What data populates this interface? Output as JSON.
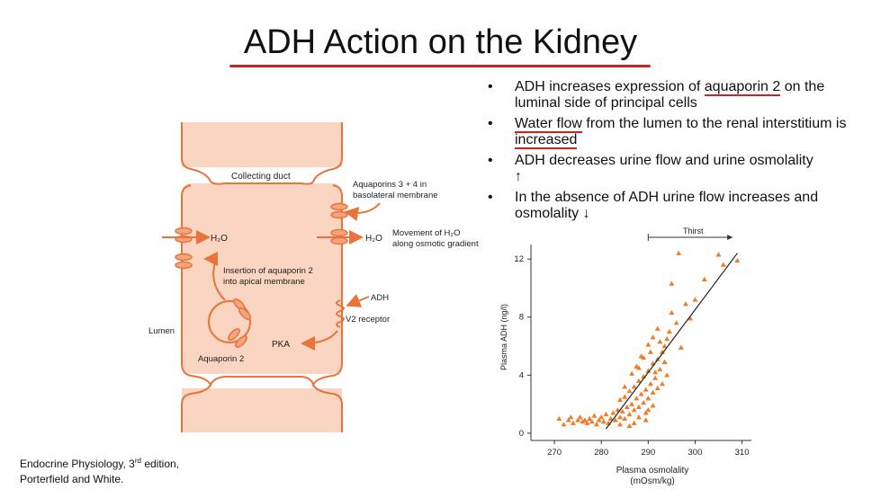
{
  "title": "ADH Action on the Kidney",
  "bullets": [
    {
      "pre": "ADH increases expression of ",
      "mark": "aquaporin 2",
      "post": " on the luminal side of principal cells"
    },
    {
      "pre": "",
      "mark": "Water flow",
      "mid": " from the lumen to the renal interstitium is ",
      "mark2": "increased",
      "post": "",
      "arrow": ""
    },
    {
      "pre": "ADH decreases urine flow and urine osmolality ",
      "arrow": "↑"
    },
    {
      "pre": "In the absence of ADH urine flow increases and osmolality ",
      "arrow": "↓"
    }
  ],
  "caption": {
    "line1_pre": "Endocrine Physiology, 3",
    "line1_sup": "rd",
    "line1_post": " edition,",
    "line2": "Porterfield and White."
  },
  "diagram": {
    "collecting_duct": "Collecting duct",
    "aquaporins_34": "Aquaporins 3 + 4 in",
    "basolateral": "basolateral membrane",
    "h2o_left": "H₂O",
    "h2o_right": "H₂O",
    "movement_1": "Movement of H₂O",
    "movement_2": "along osmotic gradient",
    "insertion_1": "Insertion of aquaporin 2",
    "insertion_2": "into apical membrane",
    "adh": "ADH",
    "v2": "V2 receptor",
    "lumen": "Lumen",
    "pka": "PKA",
    "aquaporin2": "Aquaporin 2",
    "cell_color": "#f9d5c2",
    "membrane_color": "#e8743b"
  },
  "chart_data": {
    "type": "scatter",
    "xlabel": "Plasma osmolality",
    "xlabel2": "(mOsm/kg)",
    "ylabel": "Plasma ADH (ng/l)",
    "xlim": [
      265,
      312
    ],
    "ylim": [
      -0.5,
      13
    ],
    "xticks": [
      270,
      280,
      290,
      300,
      310
    ],
    "yticks": [
      0,
      4,
      8,
      12
    ],
    "annotation": "Thirst",
    "marker_color": "#f07c2a",
    "points": [
      [
        271,
        1
      ],
      [
        272,
        0.6
      ],
      [
        273,
        0.9
      ],
      [
        273.5,
        1.1
      ],
      [
        274,
        0.7
      ],
      [
        275,
        0.9
      ],
      [
        275.5,
        1.1
      ],
      [
        276,
        0.8
      ],
      [
        276.5,
        0.9
      ],
      [
        277,
        0.7
      ],
      [
        277.5,
        1.0
      ],
      [
        278,
        0.8
      ],
      [
        278.5,
        1.2
      ],
      [
        279,
        0.6
      ],
      [
        279.5,
        0.9
      ],
      [
        280,
        1.1
      ],
      [
        280.5,
        0.8
      ],
      [
        281,
        1.3
      ],
      [
        281.5,
        0.7
      ],
      [
        282,
        1.0
      ],
      [
        282.5,
        1.4
      ],
      [
        283,
        0.9
      ],
      [
        283.5,
        1.6
      ],
      [
        284,
        1.1
      ],
      [
        284,
        2.3
      ],
      [
        284.5,
        1.5
      ],
      [
        285,
        2.5
      ],
      [
        285,
        1.0
      ],
      [
        285.5,
        1.8
      ],
      [
        286,
        2.9
      ],
      [
        286,
        1.3
      ],
      [
        286.5,
        2.0
      ],
      [
        287,
        3.2
      ],
      [
        287,
        1.6
      ],
      [
        287.5,
        2.4
      ],
      [
        288,
        3.6
      ],
      [
        288,
        1.8
      ],
      [
        288,
        4.5
      ],
      [
        288.5,
        2.7
      ],
      [
        289,
        3.9
      ],
      [
        289,
        2.1
      ],
      [
        289,
        5.2
      ],
      [
        289.5,
        3.0
      ],
      [
        290,
        4.3
      ],
      [
        290,
        2.4
      ],
      [
        290,
        6.1
      ],
      [
        290.5,
        3.4
      ],
      [
        291,
        4.8
      ],
      [
        291,
        2.8
      ],
      [
        291,
        6.6
      ],
      [
        291.5,
        3.8
      ],
      [
        292,
        5.1
      ],
      [
        292,
        3.1
      ],
      [
        292,
        7.2
      ],
      [
        292.5,
        4.4
      ],
      [
        293,
        5.6
      ],
      [
        293,
        3.4
      ],
      [
        293.5,
        6.0
      ],
      [
        294,
        6.5
      ],
      [
        294,
        4.0
      ],
      [
        294.5,
        7.0
      ],
      [
        295,
        8.3
      ],
      [
        295,
        10.3
      ],
      [
        296,
        7.6
      ],
      [
        296.5,
        12.4
      ],
      [
        297,
        5.9
      ],
      [
        298,
        8.9
      ],
      [
        299,
        7.9
      ],
      [
        300,
        9.2
      ],
      [
        302,
        10.6
      ],
      [
        305,
        12.3
      ],
      [
        306,
        11.6
      ],
      [
        309,
        11.9
      ],
      [
        286,
        0.5
      ],
      [
        287,
        0.7
      ],
      [
        284,
        0.6
      ],
      [
        288,
        1.1
      ],
      [
        289.5,
        1.4
      ],
      [
        290,
        1.6
      ],
      [
        285,
        3.2
      ],
      [
        286.5,
        4.1
      ],
      [
        287.5,
        4.6
      ],
      [
        288.5,
        5.3
      ],
      [
        290.5,
        5.6
      ],
      [
        291.5,
        4.2
      ],
      [
        292.5,
        6.3
      ],
      [
        293.5,
        4.9
      ],
      [
        289.5,
        0.9
      ],
      [
        291,
        1.9
      ]
    ],
    "fit_line": [
      [
        281,
        0.3
      ],
      [
        309,
        12.4
      ]
    ],
    "thirst_start": 290,
    "thirst_end": 308
  }
}
